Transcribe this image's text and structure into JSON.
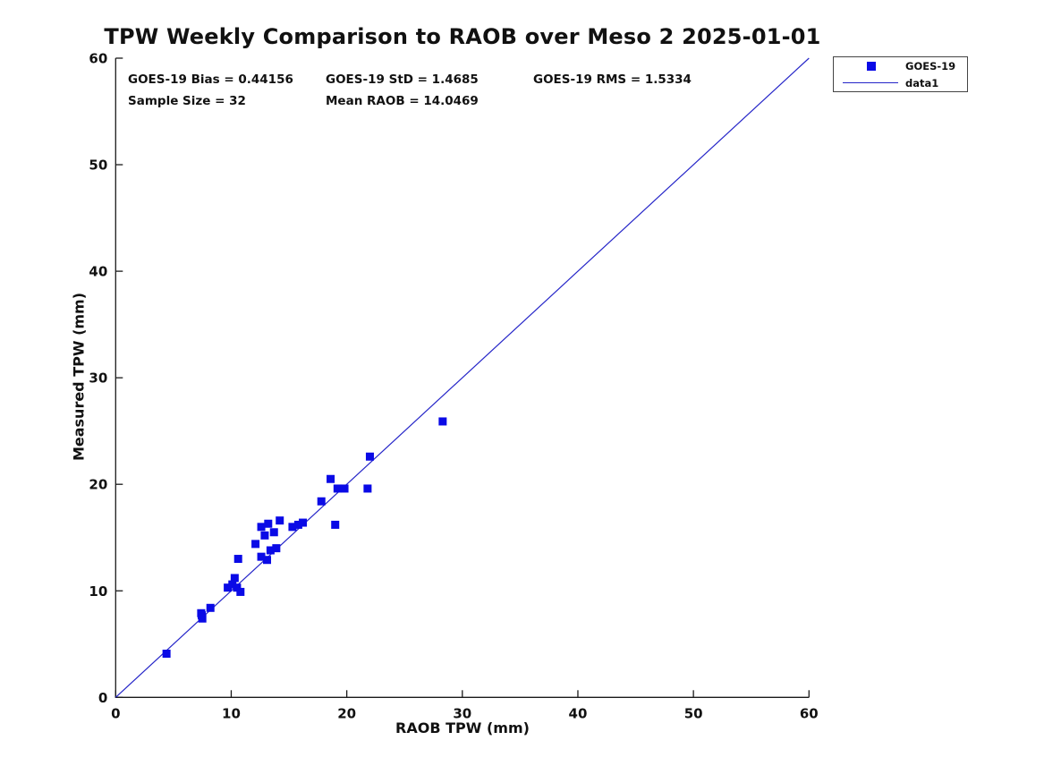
{
  "chart_data": {
    "type": "scatter",
    "title": "TPW Weekly Comparison to RAOB over Meso 2 2025-01-01",
    "xlabel": "RAOB TPW (mm)",
    "ylabel": "Measured TPW (mm)",
    "xlim": [
      0,
      60
    ],
    "ylim": [
      0,
      60
    ],
    "x_ticks": [
      0,
      10,
      20,
      30,
      40,
      50,
      60
    ],
    "y_ticks": [
      0,
      10,
      20,
      30,
      40,
      50,
      60
    ],
    "grid": false,
    "colors": {
      "marker": "#0a0ae6",
      "line": "#2525c8",
      "axis": "#1a1a1a",
      "text": "#111111"
    },
    "annotations": {
      "bias_label": "GOES-19 Bias = 0.44156",
      "std_label": "GOES-19 StD = 1.4685",
      "rms_label": "GOES-19 RMS = 1.5334",
      "sample_label": "Sample Size = 32",
      "mean_label": "Mean RAOB = 14.0469",
      "bias": 0.44156,
      "std": 1.4685,
      "rms": 1.5334,
      "sample_size": 32,
      "mean_raob": 14.0469
    },
    "legend": {
      "position": "top-right",
      "entries": [
        {
          "label": "GOES-19",
          "symbol": "square-marker"
        },
        {
          "label": "data1",
          "symbol": "line"
        }
      ]
    },
    "series": [
      {
        "name": "GOES-19",
        "type": "scatter",
        "marker": "filled-square",
        "points": [
          [
            4.4,
            4.1
          ],
          [
            7.4,
            7.9
          ],
          [
            7.45,
            7.7
          ],
          [
            7.5,
            7.4
          ],
          [
            8.2,
            8.4
          ],
          [
            9.7,
            10.3
          ],
          [
            10.1,
            10.6
          ],
          [
            10.3,
            11.2
          ],
          [
            10.5,
            10.3
          ],
          [
            10.6,
            13.0
          ],
          [
            10.8,
            9.9
          ],
          [
            12.1,
            14.4
          ],
          [
            12.6,
            16.0
          ],
          [
            12.6,
            13.2
          ],
          [
            12.9,
            15.2
          ],
          [
            13.1,
            12.9
          ],
          [
            13.2,
            16.3
          ],
          [
            13.4,
            13.8
          ],
          [
            13.7,
            15.5
          ],
          [
            13.9,
            14.0
          ],
          [
            14.2,
            16.6
          ],
          [
            15.3,
            16.0
          ],
          [
            15.8,
            16.2
          ],
          [
            16.2,
            16.4
          ],
          [
            17.8,
            18.4
          ],
          [
            18.6,
            20.5
          ],
          [
            19.0,
            16.2
          ],
          [
            19.2,
            19.6
          ],
          [
            19.8,
            19.6
          ],
          [
            21.8,
            19.6
          ],
          [
            22.0,
            22.6
          ],
          [
            28.3,
            25.9
          ]
        ]
      },
      {
        "name": "data1",
        "type": "line",
        "x": [
          0,
          60
        ],
        "y": [
          0,
          60
        ]
      }
    ]
  }
}
